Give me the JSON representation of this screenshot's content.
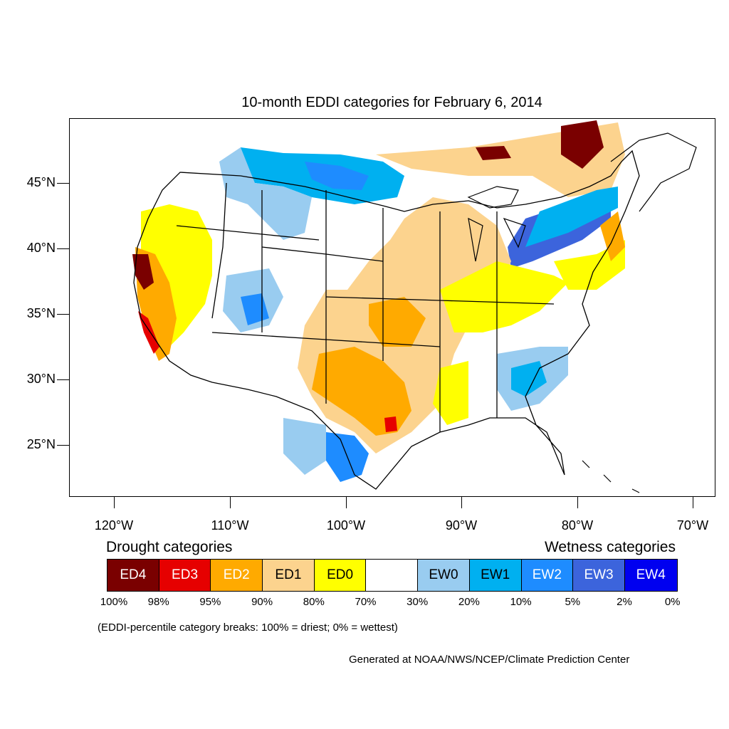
{
  "title": "10-month EDDI categories for February 6, 2014",
  "lat_labels": [
    "45°N",
    "40°N",
    "35°N",
    "30°N",
    "25°N"
  ],
  "lon_labels": [
    "120°W",
    "110°W",
    "100°W",
    "90°W",
    "80°W",
    "70°W"
  ],
  "legend": {
    "drought_heading": "Drought categories",
    "wetness_heading": "Wetness categories",
    "categories": [
      {
        "label": "ED4",
        "color": "#7a0000",
        "text_color": "#ffffff"
      },
      {
        "label": "ED3",
        "color": "#e60000",
        "text_color": "#ffffff"
      },
      {
        "label": "ED2",
        "color": "#ffaa00",
        "text_color": "#ffffff"
      },
      {
        "label": "ED1",
        "color": "#fcd38e",
        "text_color": "#000000"
      },
      {
        "label": "ED0",
        "color": "#ffff00",
        "text_color": "#000000"
      },
      {
        "label": "",
        "color": "#ffffff",
        "text_color": "#000000"
      },
      {
        "label": "EW0",
        "color": "#99ccf0",
        "text_color": "#000000"
      },
      {
        "label": "EW1",
        "color": "#00b0f0",
        "text_color": "#000000"
      },
      {
        "label": "EW2",
        "color": "#1e8cff",
        "text_color": "#ffffff"
      },
      {
        "label": "EW3",
        "color": "#3c64dc",
        "text_color": "#ffffff"
      },
      {
        "label": "EW4",
        "color": "#0000f0",
        "text_color": "#ffffff"
      }
    ],
    "breaks": [
      "100%",
      "98%",
      "95%",
      "90%",
      "80%",
      "70%",
      "30%",
      "20%",
      "10%",
      "5%",
      "2%",
      "0%"
    ]
  },
  "note": "(EDDI-percentile category breaks: 100% = driest; 0% = wettest)",
  "credit": "Generated at NOAA/NWS/NCEP/Climate Prediction Center"
}
